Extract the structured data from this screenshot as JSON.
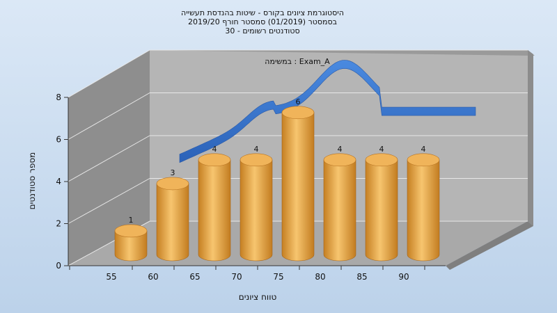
{
  "chart_data": {
    "type": "bar",
    "title_lines": [
      "היסטוגרמת ציונים בקורס - שיטות בהנדסת תעשייה",
      "בסמסטר  (01/2019)  סמסטר חורף 2019/20",
      "סטודנטים רשומים - 30"
    ],
    "annotation": "במשימה : Exam_A",
    "xlabel": "טווח ציונים",
    "ylabel": "מספר סטודנטים",
    "categories": [
      "55",
      "60",
      "65",
      "70",
      "75",
      "80",
      "85",
      "90"
    ],
    "values": [
      1,
      3,
      4,
      4,
      6,
      4,
      4,
      4
    ],
    "ylim": [
      0,
      8
    ],
    "yticks": [
      "0",
      "2",
      "4",
      "6",
      "8"
    ],
    "xticks": [
      "55",
      "60",
      "65",
      "70",
      "75",
      "80",
      "85",
      "90"
    ],
    "grid": true,
    "colors": {
      "bar": "#e3a140",
      "curve": "#3a78d0",
      "wall": "#b5b5b5",
      "side": "#8c8c8c",
      "floor": "#a8a8a8"
    }
  }
}
